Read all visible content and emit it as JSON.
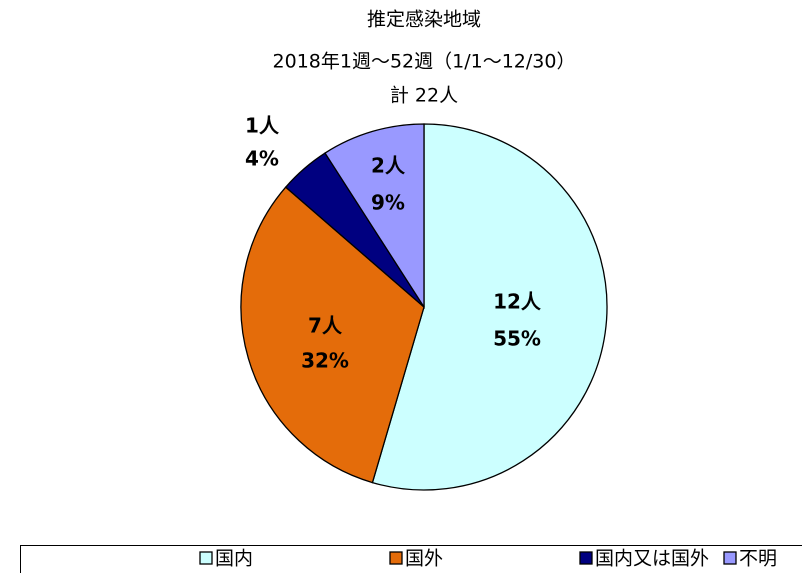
{
  "chart_data": {
    "type": "pie",
    "title": "推定感染地域",
    "subtitle": "2018年1週～52週（1/1～12/30）",
    "total_label": "計 22人",
    "categories": [
      "国内",
      "国外",
      "国内又は国外",
      "不明"
    ],
    "values": [
      12,
      7,
      1,
      2
    ],
    "value_labels": [
      "12人",
      "7人",
      "1人",
      "2人"
    ],
    "percent_labels": [
      "55%",
      "32%",
      "4%",
      "9%"
    ],
    "colors": [
      "#ccffff",
      "#e46c0a",
      "#000080",
      "#9999ff"
    ],
    "legend": "bottom"
  }
}
